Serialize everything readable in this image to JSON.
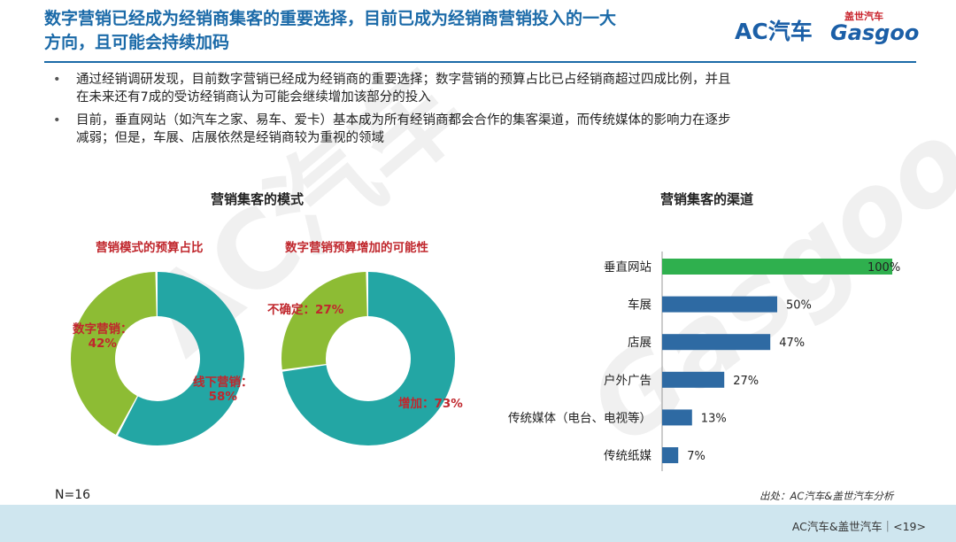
{
  "header": {
    "title_line1": "数字营销已经成为经销商集客的重要选择，目前已成为经销商营销投入的一大",
    "title_line2": "方向，且可能会持续加码",
    "logo_ac": "AC汽车",
    "logo_gasgoo_small": "盖世汽车",
    "logo_gasgoo": "Gasgoo"
  },
  "bullets": [
    {
      "line1": "通过经销调研发现，目前数字营销已经成为经销商的重要选择；数字营销的预算占比已占经销商超过四成比例，并且",
      "line2": "在未来还有7成的受访经销商认为可能会继续增加该部分的投入"
    },
    {
      "line1": "目前，垂直网站（如汽车之家、易车、爱卡）基本成为所有经销商都会合作的集客渠道，而传统媒体的影响力在逐步",
      "line2": "减弱；但是，车展、店展依然是经销商较为重视的领域"
    }
  ],
  "left_section_title": "营销集客的模式",
  "right_section_title": "营销集客的渠道",
  "sample_note": "N=16",
  "source_note": "出处：AC汽车&盖世汽车分析",
  "footer": {
    "text": "AC汽车&盖世汽车｜<19>"
  },
  "colors": {
    "green": "#8dbc34",
    "teal": "#23a6a4",
    "bar_blue": "#2e6aa3",
    "bar_green": "#2fb04e",
    "label_red": "#c0272d"
  },
  "chart_data": [
    {
      "type": "pie",
      "title": "营销模式的预算占比",
      "slices": [
        {
          "name": "数字营销",
          "value": 42,
          "label": "数字营销：",
          "value_label": "42%",
          "color": "#8dbc34"
        },
        {
          "name": "线下营销",
          "value": 58,
          "label": "线下营销：",
          "value_label": "58%",
          "color": "#23a6a4"
        }
      ]
    },
    {
      "type": "pie",
      "title": "数字营销预算增加的可能性",
      "slices": [
        {
          "name": "不确定",
          "value": 27,
          "label": "不确定：27%",
          "color": "#8dbc34"
        },
        {
          "name": "增加",
          "value": 73,
          "label": "增加：73%",
          "color": "#23a6a4"
        }
      ]
    },
    {
      "type": "bar",
      "orientation": "horizontal",
      "categories": [
        "垂直网站",
        "车展",
        "店展",
        "户外广告",
        "传统媒体（电台、电视等）",
        "传统纸媒"
      ],
      "values": [
        100,
        50,
        47,
        27,
        13,
        7
      ],
      "value_labels": [
        "100%",
        "50%",
        "47%",
        "27%",
        "13%",
        "7%"
      ],
      "xlim": [
        0,
        100
      ]
    }
  ]
}
